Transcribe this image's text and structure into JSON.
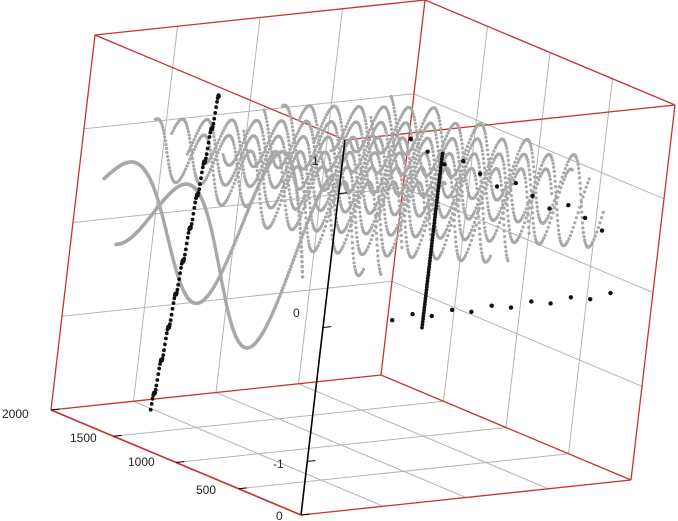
{
  "chart_data": {
    "type": "scatter",
    "projection": "3d",
    "box_color": "#c83232",
    "grid": true,
    "grid_color": "#b4b4b4",
    "axis_color": "#000000",
    "point_colors": {
      "light_series": "#a8a8a8",
      "dark_series": "#111111"
    },
    "x_axis": {
      "range": [
        0,
        2000
      ],
      "ticks": [
        "0",
        "500",
        "1000",
        "1500",
        "2000"
      ]
    },
    "z_axis": {
      "range": [
        -1.4,
        1.4
      ],
      "ticks": [
        "-1",
        "0",
        "1"
      ]
    },
    "series": [
      {
        "style": "light points",
        "shape": "damped oscillating curves (surface ripples)",
        "amplitude_range": [
          -0.4,
          1.0
        ]
      },
      {
        "style": "dark points",
        "shape": "vertical curve segments and corner markers",
        "z_min": -1.1,
        "z_max": 1.35
      }
    ]
  }
}
